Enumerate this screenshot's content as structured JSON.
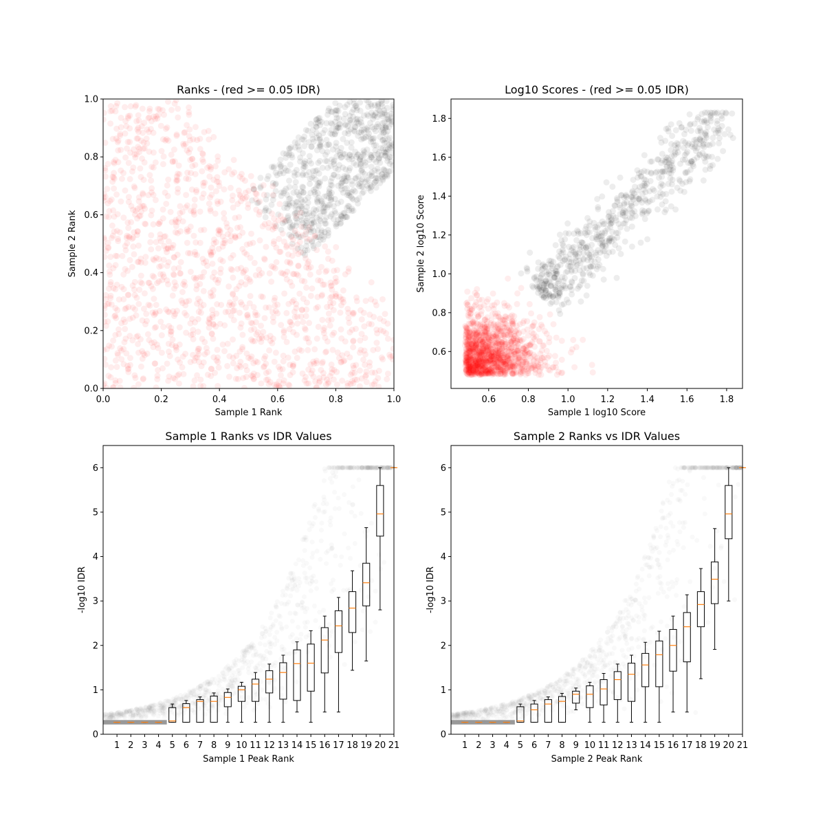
{
  "chart_data": [
    {
      "type": "scatter",
      "title": "Ranks - (red >= 0.05 IDR)",
      "xlabel": "Sample 1 Rank",
      "ylabel": "Sample 2 Rank",
      "xlim": [
        0,
        1
      ],
      "ylim": [
        0,
        1
      ],
      "xticks": [
        "0.0",
        "0.2",
        "0.4",
        "0.6",
        "0.8",
        "1.0"
      ],
      "yticks": [
        "0.0",
        "0.2",
        "0.4",
        "0.6",
        "0.8",
        "1.0"
      ],
      "grid": false,
      "colors": {
        "passing": "#000000",
        "failing": "#ff0000"
      },
      "point_alpha": 0.07,
      "approx_points": {
        "failing_red": 1300,
        "passing_gray": 700
      },
      "series": [
        {
          "color": "#ff0000",
          "region": "rank1 + rank2 below ~1.1 (broad cloud)"
        },
        {
          "color": "#000000",
          "region": "upper-right band, dense near (1.0, 1.0)"
        }
      ]
    },
    {
      "type": "scatter",
      "title": "Log10 Scores - (red >= 0.05 IDR)",
      "xlabel": "Sample 1 log10 Score",
      "ylabel": "Sample 2 log10 Score",
      "xlim": [
        0.41,
        1.88
      ],
      "ylim": [
        0.41,
        1.9
      ],
      "xticks": [
        "0.6",
        "0.8",
        "1.0",
        "1.2",
        "1.4",
        "1.6",
        "1.8"
      ],
      "yticks": [
        "0.6",
        "0.8",
        "1.0",
        "1.2",
        "1.4",
        "1.6",
        "1.8"
      ],
      "grid": false,
      "colors": {
        "passing": "#000000",
        "failing": "#ff0000"
      },
      "point_alpha": 0.07,
      "approx_points": {
        "failing_red": 1300,
        "passing_gray": 700
      }
    },
    {
      "type": "box",
      "title": "Sample 1 Ranks vs IDR Values",
      "xlabel": "Sample 1 Peak Rank",
      "ylabel": "-log10 IDR",
      "xlim": [
        0,
        21
      ],
      "ylim": [
        0,
        6.5
      ],
      "xticks": [
        "1",
        "2",
        "3",
        "4",
        "5",
        "6",
        "7",
        "8",
        "9",
        "10",
        "11",
        "12",
        "13",
        "14",
        "15",
        "16",
        "17",
        "18",
        "19",
        "20",
        "21"
      ],
      "yticks": [
        "0",
        "1",
        "2",
        "3",
        "4",
        "5",
        "6"
      ],
      "categories": [
        1,
        2,
        3,
        4,
        5,
        6,
        7,
        8,
        9,
        10,
        11,
        12,
        13,
        14,
        15,
        16,
        17,
        18,
        19,
        20,
        21
      ],
      "boxes": [
        {
          "pos": 1,
          "whislo": 0.27,
          "q1": 0.27,
          "med": 0.27,
          "q3": 0.27,
          "whishi": 0.27
        },
        {
          "pos": 2,
          "whislo": 0.27,
          "q1": 0.27,
          "med": 0.27,
          "q3": 0.27,
          "whishi": 0.27
        },
        {
          "pos": 3,
          "whislo": 0.27,
          "q1": 0.27,
          "med": 0.27,
          "q3": 0.27,
          "whishi": 0.27
        },
        {
          "pos": 4,
          "whislo": 0.27,
          "q1": 0.27,
          "med": 0.27,
          "q3": 0.27,
          "whishi": 0.27
        },
        {
          "pos": 5,
          "whislo": 0.27,
          "q1": 0.27,
          "med": 0.3,
          "q3": 0.6,
          "whishi": 0.68
        },
        {
          "pos": 6,
          "whislo": 0.27,
          "q1": 0.27,
          "med": 0.6,
          "q3": 0.69,
          "whishi": 0.76
        },
        {
          "pos": 7,
          "whislo": 0.27,
          "q1": 0.27,
          "med": 0.74,
          "q3": 0.78,
          "whishi": 0.84
        },
        {
          "pos": 8,
          "whislo": 0.27,
          "q1": 0.27,
          "med": 0.74,
          "q3": 0.86,
          "whishi": 0.93
        },
        {
          "pos": 9,
          "whislo": 0.27,
          "q1": 0.62,
          "med": 0.83,
          "q3": 0.94,
          "whishi": 1.02
        },
        {
          "pos": 10,
          "whislo": 0.27,
          "q1": 0.74,
          "med": 1.0,
          "q3": 1.08,
          "whishi": 1.17
        },
        {
          "pos": 11,
          "whislo": 0.27,
          "q1": 0.74,
          "med": 1.13,
          "q3": 1.24,
          "whishi": 1.39
        },
        {
          "pos": 12,
          "whislo": 0.27,
          "q1": 0.93,
          "med": 1.24,
          "q3": 1.43,
          "whishi": 1.58
        },
        {
          "pos": 13,
          "whislo": 0.27,
          "q1": 0.79,
          "med": 1.39,
          "q3": 1.61,
          "whishi": 1.78
        },
        {
          "pos": 14,
          "whislo": 0.5,
          "q1": 0.76,
          "med": 1.59,
          "q3": 1.9,
          "whishi": 2.08
        },
        {
          "pos": 15,
          "whislo": 0.27,
          "q1": 0.97,
          "med": 1.6,
          "q3": 2.03,
          "whishi": 2.33
        },
        {
          "pos": 16,
          "whislo": 0.5,
          "q1": 1.38,
          "med": 2.12,
          "q3": 2.4,
          "whishi": 2.66
        },
        {
          "pos": 17,
          "whislo": 0.5,
          "q1": 1.84,
          "med": 2.44,
          "q3": 2.78,
          "whishi": 3.08
        },
        {
          "pos": 18,
          "whislo": 1.44,
          "q1": 2.29,
          "med": 2.84,
          "q3": 3.21,
          "whishi": 3.68
        },
        {
          "pos": 19,
          "whislo": 1.65,
          "q1": 2.89,
          "med": 3.41,
          "q3": 3.85,
          "whishi": 4.65
        },
        {
          "pos": 20,
          "whislo": 2.8,
          "q1": 4.46,
          "med": 4.96,
          "q3": 5.6,
          "whishi": 6.0
        },
        {
          "pos": 21,
          "whislo": 6.0,
          "q1": 6.0,
          "med": 6.0,
          "q3": 6.0,
          "whishi": 6.0
        }
      ],
      "colors": {
        "box": "#000000",
        "median": "#ff7f0e",
        "points": "#808080"
      },
      "grid": false
    },
    {
      "type": "box",
      "title": "Sample 2 Ranks vs IDR Values",
      "xlabel": "Sample 2 Peak Rank",
      "ylabel": "-log10 IDR",
      "xlim": [
        0,
        21
      ],
      "ylim": [
        0,
        6.5
      ],
      "xticks": [
        "1",
        "2",
        "3",
        "4",
        "5",
        "6",
        "7",
        "8",
        "9",
        "10",
        "11",
        "12",
        "13",
        "14",
        "15",
        "16",
        "17",
        "18",
        "19",
        "20",
        "21"
      ],
      "yticks": [
        "0",
        "1",
        "2",
        "3",
        "4",
        "5",
        "6"
      ],
      "categories": [
        1,
        2,
        3,
        4,
        5,
        6,
        7,
        8,
        9,
        10,
        11,
        12,
        13,
        14,
        15,
        16,
        17,
        18,
        19,
        20,
        21
      ],
      "boxes": [
        {
          "pos": 1,
          "whislo": 0.27,
          "q1": 0.27,
          "med": 0.27,
          "q3": 0.27,
          "whishi": 0.27
        },
        {
          "pos": 2,
          "whislo": 0.27,
          "q1": 0.27,
          "med": 0.27,
          "q3": 0.27,
          "whishi": 0.27
        },
        {
          "pos": 3,
          "whislo": 0.27,
          "q1": 0.27,
          "med": 0.27,
          "q3": 0.27,
          "whishi": 0.27
        },
        {
          "pos": 4,
          "whislo": 0.27,
          "q1": 0.27,
          "med": 0.27,
          "q3": 0.27,
          "whishi": 0.27
        },
        {
          "pos": 5,
          "whislo": 0.27,
          "q1": 0.27,
          "med": 0.3,
          "q3": 0.62,
          "whishi": 0.68
        },
        {
          "pos": 6,
          "whislo": 0.27,
          "q1": 0.27,
          "med": 0.55,
          "q3": 0.68,
          "whishi": 0.76
        },
        {
          "pos": 7,
          "whislo": 0.27,
          "q1": 0.27,
          "med": 0.68,
          "q3": 0.78,
          "whishi": 0.84
        },
        {
          "pos": 8,
          "whislo": 0.27,
          "q1": 0.27,
          "med": 0.74,
          "q3": 0.85,
          "whishi": 0.92
        },
        {
          "pos": 9,
          "whislo": 0.55,
          "q1": 0.7,
          "med": 0.9,
          "q3": 0.97,
          "whishi": 1.04
        },
        {
          "pos": 10,
          "whislo": 0.27,
          "q1": 0.6,
          "med": 0.9,
          "q3": 1.09,
          "whishi": 1.17
        },
        {
          "pos": 11,
          "whislo": 0.27,
          "q1": 0.66,
          "med": 1.02,
          "q3": 1.23,
          "whishi": 1.37
        },
        {
          "pos": 12,
          "whislo": 0.27,
          "q1": 0.78,
          "med": 1.23,
          "q3": 1.41,
          "whishi": 1.58
        },
        {
          "pos": 13,
          "whislo": 0.27,
          "q1": 0.74,
          "med": 1.35,
          "q3": 1.6,
          "whishi": 1.78
        },
        {
          "pos": 14,
          "whislo": 0.27,
          "q1": 1.07,
          "med": 1.56,
          "q3": 1.82,
          "whishi": 2.07
        },
        {
          "pos": 15,
          "whislo": 0.27,
          "q1": 1.07,
          "med": 1.79,
          "q3": 2.1,
          "whishi": 2.32
        },
        {
          "pos": 16,
          "whislo": 0.5,
          "q1": 1.42,
          "med": 2.0,
          "q3": 2.36,
          "whishi": 2.66
        },
        {
          "pos": 17,
          "whislo": 0.5,
          "q1": 1.63,
          "med": 2.42,
          "q3": 2.74,
          "whishi": 3.14
        },
        {
          "pos": 18,
          "whislo": 1.25,
          "q1": 2.42,
          "med": 2.92,
          "q3": 3.21,
          "whishi": 3.73
        },
        {
          "pos": 19,
          "whislo": 1.91,
          "q1": 2.94,
          "med": 3.49,
          "q3": 3.88,
          "whishi": 4.63
        },
        {
          "pos": 20,
          "whislo": 3.0,
          "q1": 4.4,
          "med": 4.96,
          "q3": 5.6,
          "whishi": 6.0
        },
        {
          "pos": 21,
          "whislo": 6.0,
          "q1": 6.0,
          "med": 6.0,
          "q3": 6.0,
          "whishi": 6.0
        }
      ],
      "colors": {
        "box": "#000000",
        "median": "#ff7f0e",
        "points": "#808080"
      },
      "grid": false
    }
  ]
}
